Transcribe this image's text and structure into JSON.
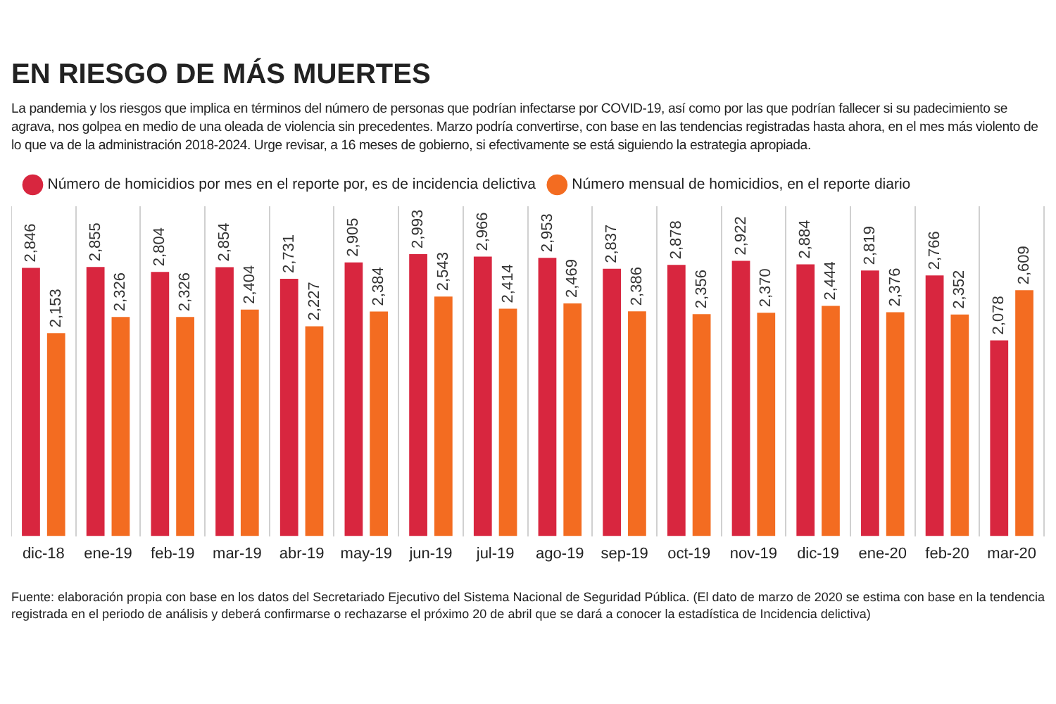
{
  "chart_data": {
    "type": "bar",
    "title": "EN RIESGO DE MÁS MUERTES",
    "subtitle": "La pandemia y los riesgos que implica en términos del número de personas que podrían infectarse por COVID-19, así como por las que podrían fallecer si su padecimiento se agrava, nos golpea en medio de una oleada de violencia sin precedentes. Marzo podría convertirse, con base en las tendencias registradas hasta ahora, en el mes más violento de lo que va de la administración 2018-2024. Urge revisar, a 16 meses de gobierno, si efectivamente se está siguiendo la estrategia apropiada.",
    "categories": [
      "dic-18",
      "ene-19",
      "feb-19",
      "mar-19",
      "abr-19",
      "may-19",
      "jun-19",
      "jul-19",
      "ago-19",
      "sep-19",
      "oct-19",
      "nov-19",
      "dic-19",
      "ene-20",
      "feb-20",
      "mar-20"
    ],
    "series": [
      {
        "name": "Número de homicidios por mes en el reporte por, es de incidencia delictiva",
        "color": "#d8263f",
        "values": [
          2846,
          2855,
          2804,
          2854,
          2731,
          2905,
          2993,
          2966,
          2953,
          2837,
          2878,
          2922,
          2884,
          2819,
          2766,
          2078
        ],
        "value_labels": [
          "2,846",
          "2,855",
          "2,804",
          "2,854",
          "2,731",
          "2,905",
          "2,993",
          "2,966",
          "2,953",
          "2,837",
          "2,878",
          "2,922",
          "2,884",
          "2,819",
          "2,766",
          "2,078"
        ]
      },
      {
        "name": "Número mensual de homicidios, en el reporte diario",
        "color": "#f36c21",
        "values": [
          2153,
          2326,
          2326,
          2404,
          2227,
          2384,
          2543,
          2414,
          2469,
          2386,
          2356,
          2370,
          2444,
          2376,
          2352,
          2609
        ],
        "value_labels": [
          "2,153",
          "2,326",
          "2,326",
          "2,404",
          "2,227",
          "2,384",
          "2,543",
          "2,414",
          "2,469",
          "2,386",
          "2,356",
          "2,370",
          "2,444",
          "2,376",
          "2,352",
          "2,609"
        ]
      }
    ],
    "grid": "x",
    "legend": "top left",
    "annotations": [
      "Fuente: elaboración propia con base en los datos del Secretariado Ejecutivo del Sistema Nacional de Seguridad Pública. (El dato de marzo de 2020 se estima con base en la tendencia registrada en el periodo de análisis y deberá confirmarse o rechazarse el próximo 20 de abril que se dará a conocer la estadística de Incidencia delictiva)"
    ]
  }
}
